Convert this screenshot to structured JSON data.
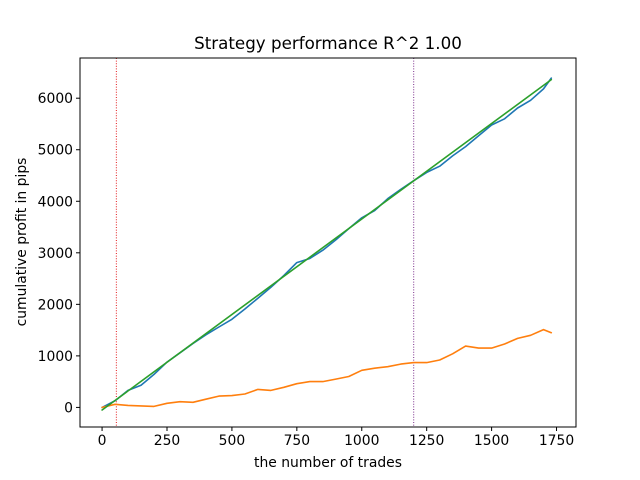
{
  "chart_data": {
    "type": "line",
    "title": "Strategy performance R^2 1.00",
    "xlabel": "the number of trades",
    "ylabel": "cumulative profit in pips",
    "xlim": [
      -85,
      1825
    ],
    "ylim": [
      -380,
      6780
    ],
    "xticks": [
      0,
      250,
      500,
      750,
      1000,
      1250,
      1500,
      1750
    ],
    "yticks": [
      0,
      1000,
      2000,
      3000,
      4000,
      5000,
      6000
    ],
    "grid": false,
    "legend": "none",
    "series": [
      {
        "color": "#1f77b4",
        "x": [
          0,
          50,
          100,
          150,
          200,
          250,
          300,
          350,
          400,
          450,
          500,
          550,
          600,
          650,
          700,
          750,
          800,
          850,
          900,
          950,
          1000,
          1050,
          1100,
          1150,
          1200,
          1250,
          1300,
          1350,
          1400,
          1450,
          1500,
          1550,
          1600,
          1650,
          1700,
          1730
        ],
        "y": [
          0,
          130,
          330,
          430,
          640,
          880,
          1060,
          1240,
          1410,
          1560,
          1710,
          1910,
          2120,
          2330,
          2560,
          2810,
          2890,
          3050,
          3250,
          3470,
          3680,
          3820,
          4050,
          4230,
          4400,
          4560,
          4680,
          4880,
          5060,
          5270,
          5480,
          5600,
          5810,
          5960,
          6180,
          6390
        ]
      },
      {
        "color": "#ff7f0e",
        "x": [
          0,
          50,
          100,
          150,
          200,
          250,
          300,
          350,
          400,
          450,
          500,
          550,
          600,
          650,
          700,
          750,
          800,
          850,
          900,
          950,
          1000,
          1050,
          1100,
          1150,
          1200,
          1250,
          1300,
          1350,
          1400,
          1450,
          1500,
          1550,
          1600,
          1650,
          1700,
          1730
        ],
        "y": [
          0,
          60,
          40,
          30,
          20,
          80,
          110,
          100,
          160,
          220,
          230,
          260,
          350,
          330,
          390,
          460,
          500,
          500,
          550,
          600,
          720,
          760,
          790,
          840,
          870,
          870,
          920,
          1040,
          1190,
          1150,
          1150,
          1230,
          1340,
          1400,
          1510,
          1450
        ]
      },
      {
        "color": "#2ca02c",
        "x": [
          0,
          1730
        ],
        "y": [
          -50,
          6360
        ]
      }
    ],
    "vlines": [
      {
        "x": 55,
        "color": "#e41a1c",
        "style": "dotted"
      },
      {
        "x": 1200,
        "color": "#7b2d8b",
        "style": "dotted"
      }
    ]
  }
}
